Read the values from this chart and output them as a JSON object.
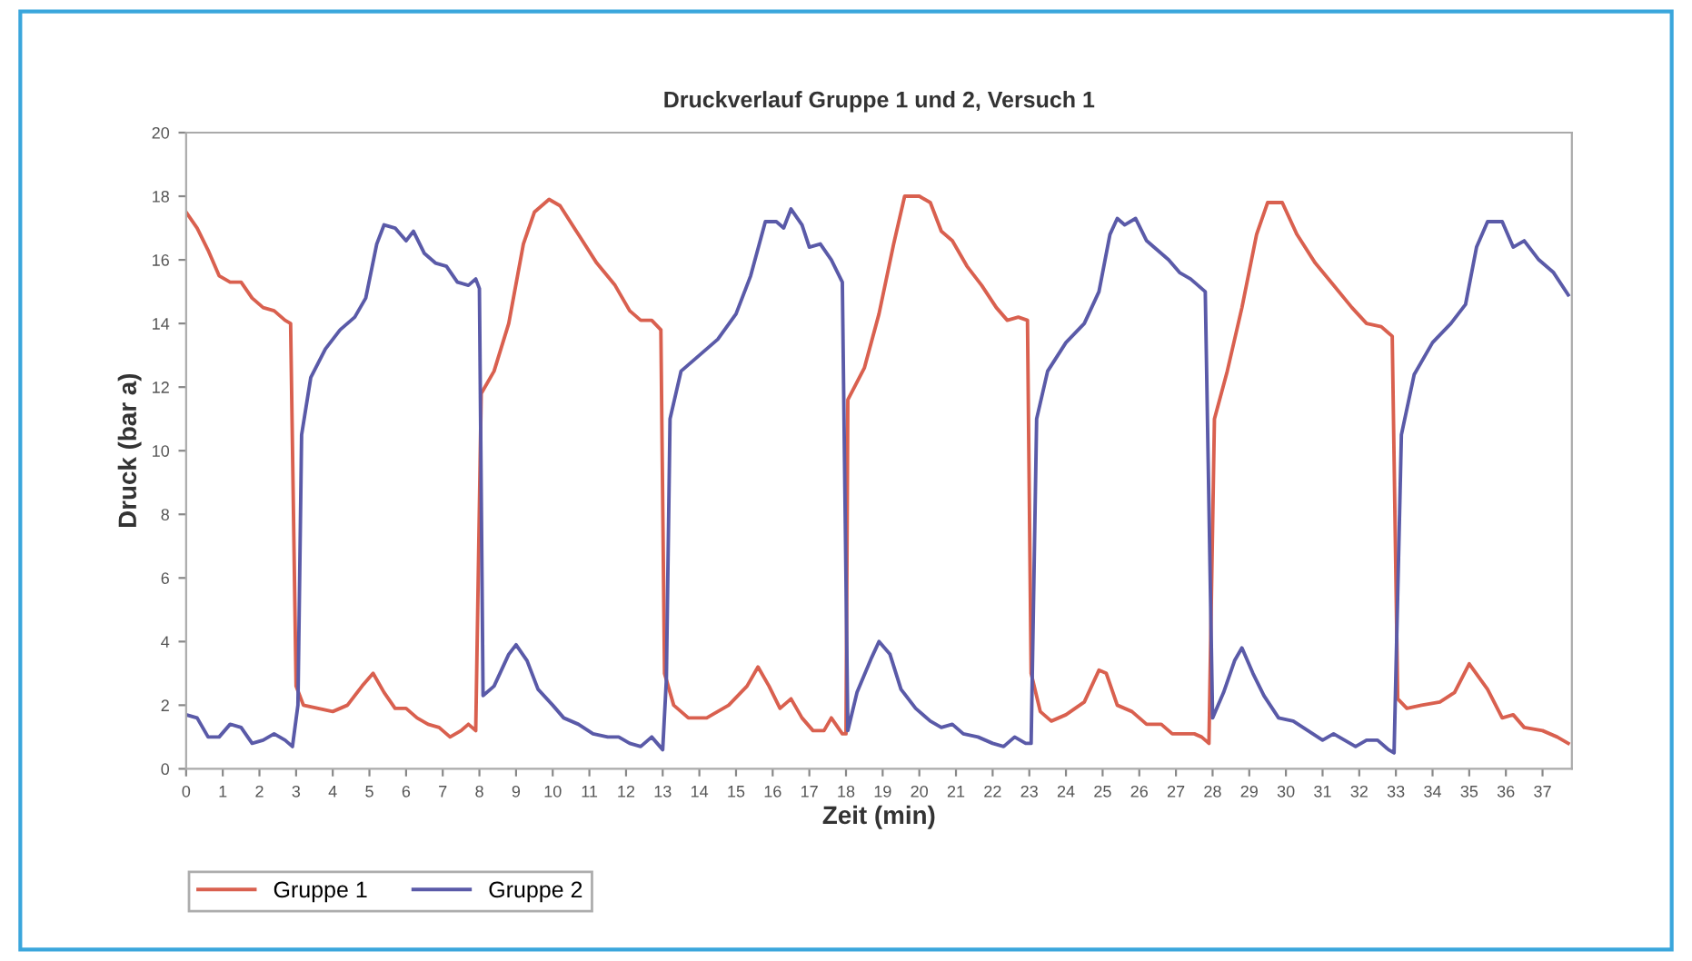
{
  "chart_data": {
    "type": "line",
    "title": "Druckverlauf Gruppe 1 und 2, Versuch 1",
    "xlabel": "Zeit (min)",
    "ylabel": "Druck (bar a)",
    "xlim": [
      0,
      37.8
    ],
    "xticks": [
      0,
      1,
      2,
      3,
      4,
      5,
      6,
      7,
      8,
      9,
      10,
      11,
      12,
      13,
      14,
      15,
      16,
      17,
      18,
      19,
      20,
      21,
      22,
      23,
      24,
      25,
      26,
      27,
      28,
      29,
      30,
      31,
      32,
      33,
      34,
      35,
      36,
      37
    ],
    "ylim": [
      0,
      20
    ],
    "yticks": [
      0,
      2,
      4,
      6,
      8,
      10,
      12,
      14,
      16,
      18,
      20
    ],
    "grid": false,
    "legend": "bottom left",
    "marker": "none",
    "line_style": "solid",
    "series": [
      {
        "name": "Gruppe 1",
        "color": "#d9604f",
        "x": [
          0,
          0.3,
          0.6,
          0.9,
          1.2,
          1.5,
          1.8,
          2.1,
          2.4,
          2.7,
          2.85,
          3.0,
          3.2,
          3.6,
          4.0,
          4.4,
          4.8,
          5.1,
          5.4,
          5.7,
          6.0,
          6.3,
          6.6,
          6.9,
          7.2,
          7.5,
          7.7,
          7.9,
          8.05,
          8.4,
          8.8,
          9.2,
          9.5,
          9.9,
          10.2,
          10.7,
          11.2,
          11.7,
          12.1,
          12.4,
          12.7,
          12.95,
          13.05,
          13.3,
          13.7,
          14.2,
          14.8,
          15.3,
          15.6,
          15.9,
          16.2,
          16.5,
          16.8,
          17.1,
          17.4,
          17.6,
          17.9,
          18.0,
          18.05,
          18.5,
          18.9,
          19.3,
          19.6,
          20.0,
          20.3,
          20.6,
          20.9,
          21.3,
          21.7,
          22.1,
          22.4,
          22.7,
          22.95,
          23.05,
          23.3,
          23.6,
          24.0,
          24.5,
          24.9,
          25.1,
          25.4,
          25.8,
          26.2,
          26.6,
          26.9,
          27.2,
          27.5,
          27.7,
          27.9,
          28.05,
          28.4,
          28.8,
          29.2,
          29.5,
          29.9,
          30.3,
          30.8,
          31.3,
          31.8,
          32.2,
          32.6,
          32.9,
          33.05,
          33.3,
          33.7,
          34.2,
          34.6,
          35.0,
          35.5,
          35.9,
          36.2,
          36.5,
          37.0,
          37.4,
          37.7
        ],
        "values": [
          17.5,
          17.0,
          16.3,
          15.5,
          15.3,
          15.3,
          14.8,
          14.5,
          14.4,
          14.1,
          14.0,
          2.6,
          2.0,
          1.9,
          1.8,
          2.0,
          2.6,
          3.0,
          2.4,
          1.9,
          1.9,
          1.6,
          1.4,
          1.3,
          1.0,
          1.2,
          1.4,
          1.2,
          11.8,
          12.5,
          14,
          16.5,
          17.5,
          17.9,
          17.7,
          16.8,
          15.9,
          15.2,
          14.4,
          14.1,
          14.1,
          13.8,
          3.0,
          2.0,
          1.6,
          1.6,
          2.0,
          2.6,
          3.2,
          2.6,
          1.9,
          2.2,
          1.6,
          1.2,
          1.2,
          1.6,
          1.1,
          1.1,
          11.6,
          12.6,
          14.3,
          16.5,
          18.0,
          18.0,
          17.8,
          16.9,
          16.6,
          15.8,
          15.2,
          14.5,
          14.1,
          14.2,
          14.1,
          3.0,
          1.8,
          1.5,
          1.7,
          2.1,
          3.1,
          3.0,
          2.0,
          1.8,
          1.4,
          1.4,
          1.1,
          1.1,
          1.1,
          1.0,
          0.8,
          11.0,
          12.5,
          14.5,
          16.8,
          17.8,
          17.8,
          16.8,
          15.9,
          15.2,
          14.5,
          14.0,
          13.9,
          13.6,
          2.2,
          1.9,
          2.0,
          2.1,
          2.4,
          3.3,
          2.5,
          1.6,
          1.7,
          1.3,
          1.2,
          1.0,
          0.8
        ]
      },
      {
        "name": "Gruppe 2",
        "color": "#5a5aa8",
        "x": [
          0,
          0.3,
          0.6,
          0.9,
          1.2,
          1.5,
          1.8,
          2.1,
          2.4,
          2.7,
          2.9,
          3.05,
          3.15,
          3.4,
          3.8,
          4.2,
          4.6,
          4.9,
          5.2,
          5.4,
          5.7,
          6.0,
          6.2,
          6.5,
          6.8,
          7.1,
          7.4,
          7.7,
          7.9,
          8.0,
          8.1,
          8.4,
          8.8,
          9.0,
          9.3,
          9.6,
          10.0,
          10.3,
          10.7,
          11.1,
          11.5,
          11.8,
          12.1,
          12.4,
          12.7,
          13.0,
          13.1,
          13.2,
          13.5,
          14.0,
          14.5,
          15.0,
          15.4,
          15.8,
          16.1,
          16.3,
          16.5,
          16.8,
          17.0,
          17.3,
          17.6,
          17.9,
          18.05,
          18.3,
          18.7,
          18.9,
          19.2,
          19.5,
          19.9,
          20.3,
          20.6,
          20.9,
          21.2,
          21.6,
          22.0,
          22.3,
          22.6,
          22.9,
          23.05,
          23.2,
          23.5,
          24.0,
          24.5,
          24.9,
          25.2,
          25.4,
          25.6,
          25.9,
          26.2,
          26.5,
          26.8,
          27.1,
          27.4,
          27.8,
          28.0,
          28.3,
          28.6,
          28.8,
          29.1,
          29.4,
          29.8,
          30.2,
          30.6,
          31.0,
          31.3,
          31.6,
          31.9,
          32.2,
          32.5,
          32.8,
          32.95,
          33.15,
          33.5,
          34.0,
          34.5,
          34.9,
          35.2,
          35.5,
          35.9,
          36.2,
          36.5,
          36.9,
          37.3,
          37.7
        ],
        "values": [
          1.7,
          1.6,
          1.0,
          1.0,
          1.4,
          1.3,
          0.8,
          0.9,
          1.1,
          0.9,
          0.7,
          2.0,
          10.5,
          12.3,
          13.2,
          13.8,
          14.2,
          14.8,
          16.5,
          17.1,
          17.0,
          16.6,
          16.9,
          16.2,
          15.9,
          15.8,
          15.3,
          15.2,
          15.4,
          15.1,
          2.3,
          2.6,
          3.6,
          3.9,
          3.4,
          2.5,
          2.0,
          1.6,
          1.4,
          1.1,
          1.0,
          1.0,
          0.8,
          0.7,
          1.0,
          0.6,
          2.8,
          11.0,
          12.5,
          13.0,
          13.5,
          14.3,
          15.5,
          17.2,
          17.2,
          17.0,
          17.6,
          17.1,
          16.4,
          16.5,
          16.0,
          15.3,
          1.2,
          2.4,
          3.5,
          4.0,
          3.6,
          2.5,
          1.9,
          1.5,
          1.3,
          1.4,
          1.1,
          1.0,
          0.8,
          0.7,
          1.0,
          0.8,
          0.8,
          11.0,
          12.5,
          13.4,
          14.0,
          15.0,
          16.8,
          17.3,
          17.1,
          17.3,
          16.6,
          16.3,
          16.0,
          15.6,
          15.4,
          15.0,
          1.6,
          2.4,
          3.4,
          3.8,
          3.0,
          2.3,
          1.6,
          1.5,
          1.2,
          0.9,
          1.1,
          0.9,
          0.7,
          0.9,
          0.9,
          0.6,
          0.5,
          10.5,
          12.4,
          13.4,
          14.0,
          14.6,
          16.4,
          17.2,
          17.2,
          16.4,
          16.6,
          16.0,
          15.6,
          14.9
        ]
      }
    ]
  }
}
